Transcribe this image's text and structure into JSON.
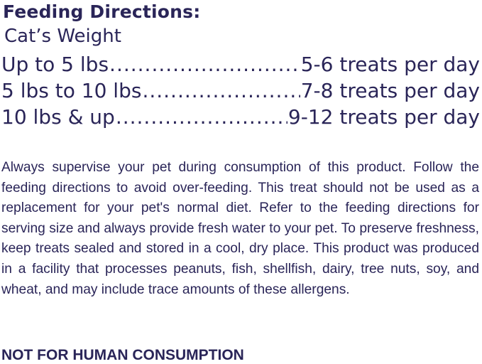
{
  "heading": "Feeding Directions:",
  "column_label": "Cat’s Weight",
  "rows": [
    {
      "weight": "Up to 5 lbs",
      "amount": "5-6 treats per day"
    },
    {
      "weight": "5 lbs to 10 lbs",
      "amount": "7-8 treats per day"
    },
    {
      "weight": "10 lbs & up",
      "amount": "9-12 treats per day"
    }
  ],
  "body_text": "Always supervise your pet during consumption of this product. Follow the feeding directions to avoid over-feeding. This treat should not be used as a replacement for your pet's normal diet. Refer to the feeding directions for serving size and always provide fresh water to your pet. To preserve freshness, keep treats sealed and stored in a cool, dry place. This product was produced in a facility that processes peanuts, fish, shellfish, dairy, tree nuts, soy, and wheat, and may include trace amounts of these allergens.",
  "warning": "NOT FOR HUMAN CONSUMPTION",
  "colors": {
    "text": "#2a2558",
    "background": "#ffffff"
  }
}
